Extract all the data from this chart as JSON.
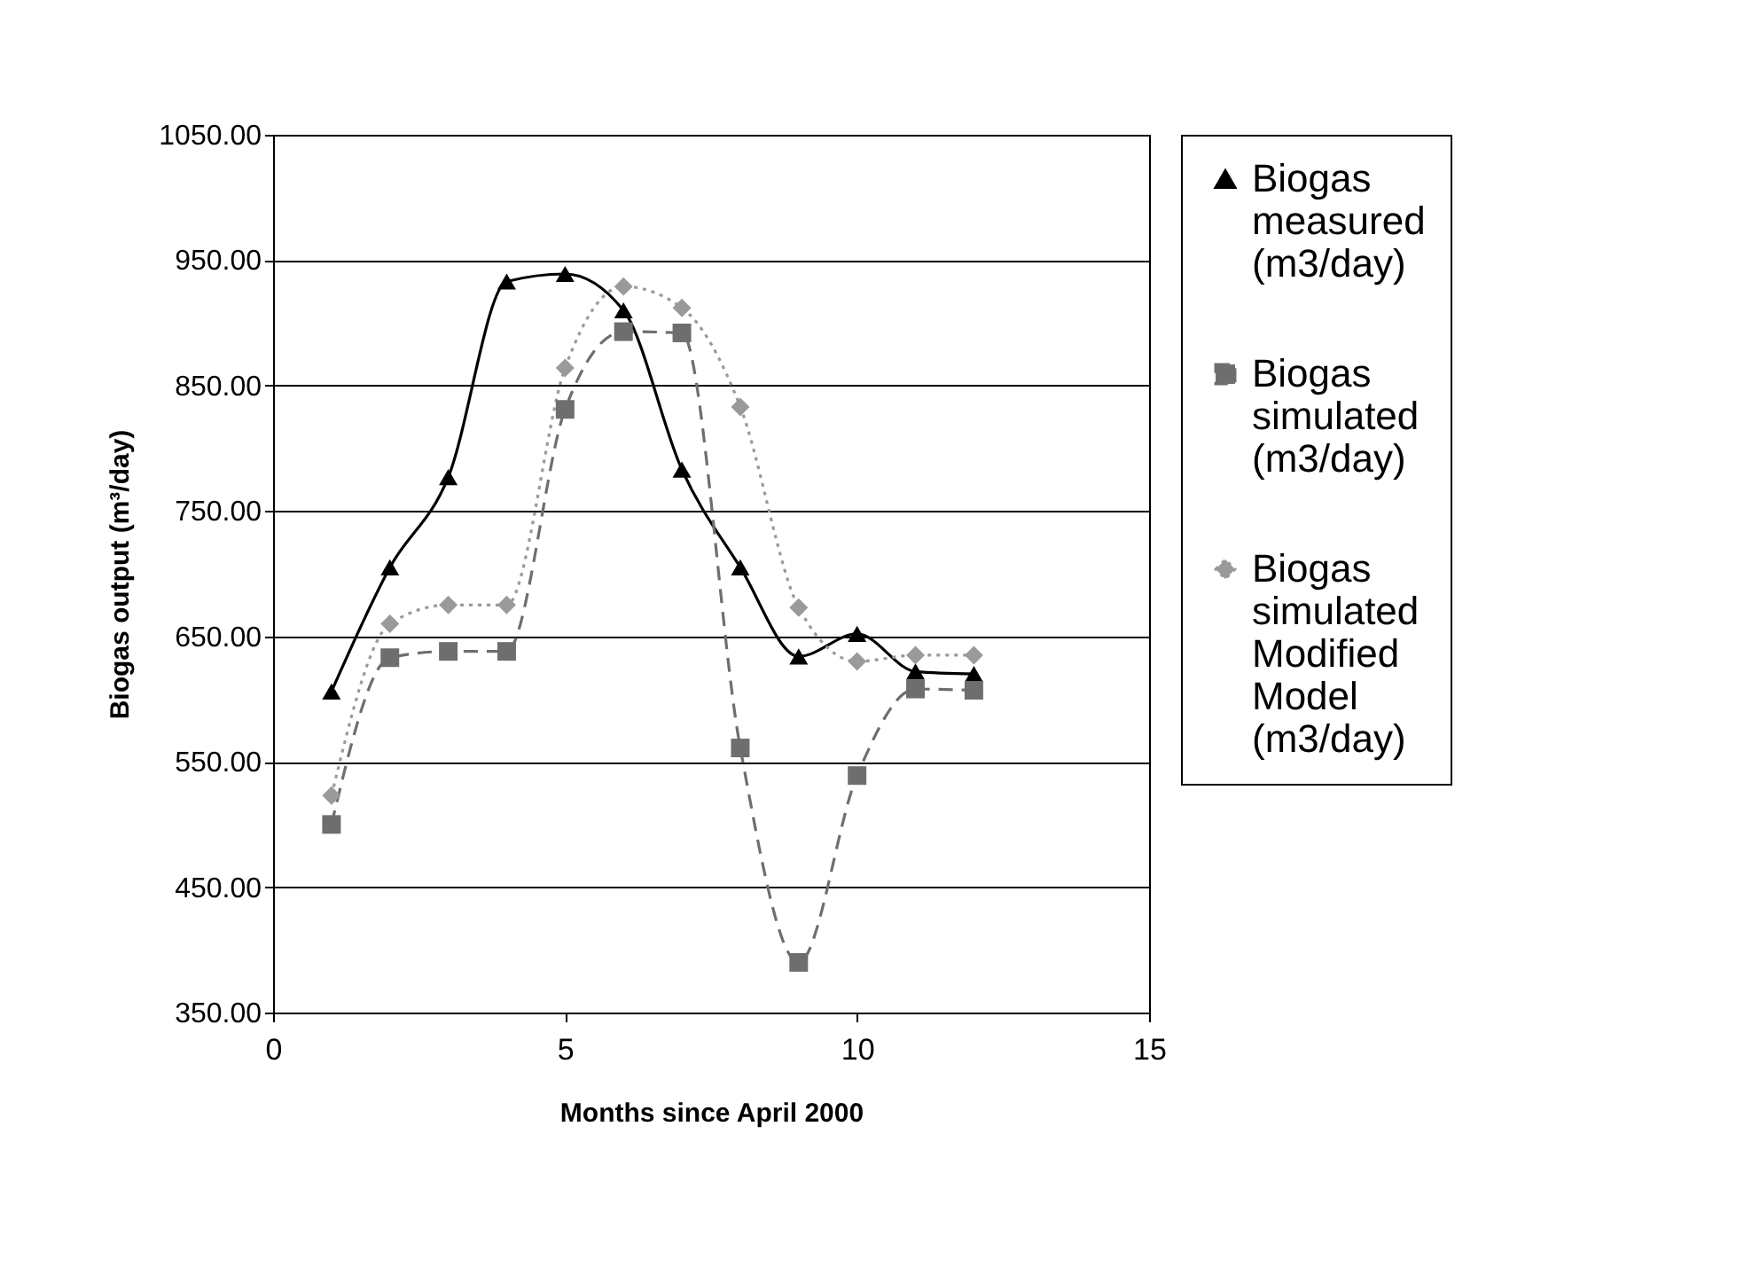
{
  "chart_data": {
    "type": "line",
    "xlabel": "Months since April 2000",
    "ylabel": "Biogas output (m³/day)",
    "x": [
      1,
      2,
      3,
      4,
      5,
      6,
      7,
      8,
      9,
      10,
      11,
      12
    ],
    "xlim": [
      0,
      15
    ],
    "xticks": [
      0,
      5,
      10,
      15
    ],
    "ylim": [
      350,
      1050
    ],
    "yticks": [
      {
        "value": 350,
        "label": "350.00"
      },
      {
        "value": 450,
        "label": "450.00"
      },
      {
        "value": 550,
        "label": "550.00"
      },
      {
        "value": 650,
        "label": "650.00"
      },
      {
        "value": 750,
        "label": "750.00"
      },
      {
        "value": 850,
        "label": "850.00"
      },
      {
        "value": 950,
        "label": "950.00"
      },
      {
        "value": 1050,
        "label": "1050.00"
      }
    ],
    "grid": "y",
    "legend": "right",
    "series": [
      {
        "name": "Biogas measured (m3/day)",
        "color": "#000000",
        "marker": "triangle",
        "line_style": "solid",
        "values": [
          606,
          705,
          777,
          933,
          939,
          910,
          783,
          705,
          634,
          652,
          622,
          620
        ]
      },
      {
        "name": "Biogas simulated (m3/day)",
        "color": "#6e6e6e",
        "marker": "square",
        "line_style": "dashed",
        "values": [
          500,
          633,
          638,
          638,
          831,
          893,
          892,
          561,
          390,
          539,
          608,
          607
        ]
      },
      {
        "name": "Biogas simulated Modified Model (m3/day)",
        "color": "#9a9a9a",
        "marker": "diamond",
        "line_style": "dotted",
        "values": [
          523,
          660,
          675,
          675,
          864,
          929,
          912,
          833,
          673,
          630,
          635,
          635
        ]
      }
    ]
  }
}
